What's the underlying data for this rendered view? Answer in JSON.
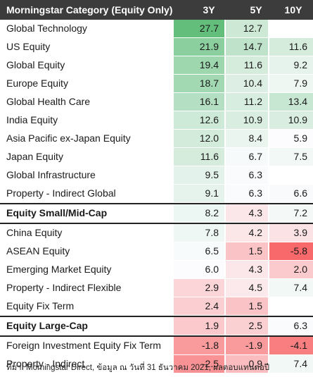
{
  "header": {
    "category": "Morningstar Category (Equity Only)",
    "col_3y": "3Y",
    "col_5y": "5Y",
    "col_10y": "10Y"
  },
  "source": "ที่มา: Morningstar Direct, ข้อมูล ณ วันที่ 31 ธันวาคม 2021, ผลตอบแทนต่อปี",
  "chart_data": {
    "type": "table",
    "title": "",
    "columns": [
      "3Y",
      "5Y",
      "10Y"
    ],
    "rows": [
      {
        "name": "Global Technology",
        "3Y": "27.7",
        "5Y": "12.7",
        "10Y": "",
        "bold": false,
        "sep": false
      },
      {
        "name": "US Equity",
        "3Y": "21.9",
        "5Y": "14.7",
        "10Y": "11.6",
        "bold": false,
        "sep": false
      },
      {
        "name": "Global Equity",
        "3Y": "19.4",
        "5Y": "11.6",
        "10Y": "9.2",
        "bold": false,
        "sep": false
      },
      {
        "name": "Europe Equity",
        "3Y": "18.7",
        "5Y": "10.4",
        "10Y": "7.9",
        "bold": false,
        "sep": false
      },
      {
        "name": "Global Health Care",
        "3Y": "16.1",
        "5Y": "11.2",
        "10Y": "13.4",
        "bold": false,
        "sep": false
      },
      {
        "name": "India Equity",
        "3Y": "12.6",
        "5Y": "10.9",
        "10Y": "10.9",
        "bold": false,
        "sep": false
      },
      {
        "name": "Asia Pacific ex-Japan Equity",
        "3Y": "12.0",
        "5Y": "8.4",
        "10Y": "5.9",
        "bold": false,
        "sep": false
      },
      {
        "name": "Japan Equity",
        "3Y": "11.6",
        "5Y": "6.7",
        "10Y": "7.5",
        "bold": false,
        "sep": false
      },
      {
        "name": "Global Infrastructure",
        "3Y": "9.5",
        "5Y": "6.3",
        "10Y": "",
        "bold": false,
        "sep": false
      },
      {
        "name": "Property - Indirect Global",
        "3Y": "9.1",
        "5Y": "6.3",
        "10Y": "6.6",
        "bold": false,
        "sep": false
      },
      {
        "name": "Equity Small/Mid-Cap",
        "3Y": "8.2",
        "5Y": "4.3",
        "10Y": "7.2",
        "bold": true,
        "sep": true
      },
      {
        "name": "China Equity",
        "3Y": "7.8",
        "5Y": "4.2",
        "10Y": "3.9",
        "bold": false,
        "sep": true
      },
      {
        "name": "ASEAN Equity",
        "3Y": "6.5",
        "5Y": "1.5",
        "10Y": "-5.8",
        "bold": false,
        "sep": false
      },
      {
        "name": "Emerging Market Equity",
        "3Y": "6.0",
        "5Y": "4.3",
        "10Y": "2.0",
        "bold": false,
        "sep": false
      },
      {
        "name": "Property - Indirect Flexible",
        "3Y": "2.9",
        "5Y": "4.5",
        "10Y": "7.4",
        "bold": false,
        "sep": false
      },
      {
        "name": "Equity Fix Term",
        "3Y": "2.4",
        "5Y": "1.5",
        "10Y": "",
        "bold": false,
        "sep": false
      },
      {
        "name": "Equity Large-Cap",
        "3Y": "1.9",
        "5Y": "2.5",
        "10Y": "6.3",
        "bold": true,
        "sep": true
      },
      {
        "name": "Foreign Investment Equity Fix Term",
        "3Y": "-1.8",
        "5Y": "-1.9",
        "10Y": "-4.1",
        "bold": false,
        "sep": true
      },
      {
        "name": "Property - Indirect",
        "3Y": "-2.5",
        "5Y": "0.9",
        "10Y": "7.4",
        "bold": false,
        "sep": false
      }
    ]
  }
}
